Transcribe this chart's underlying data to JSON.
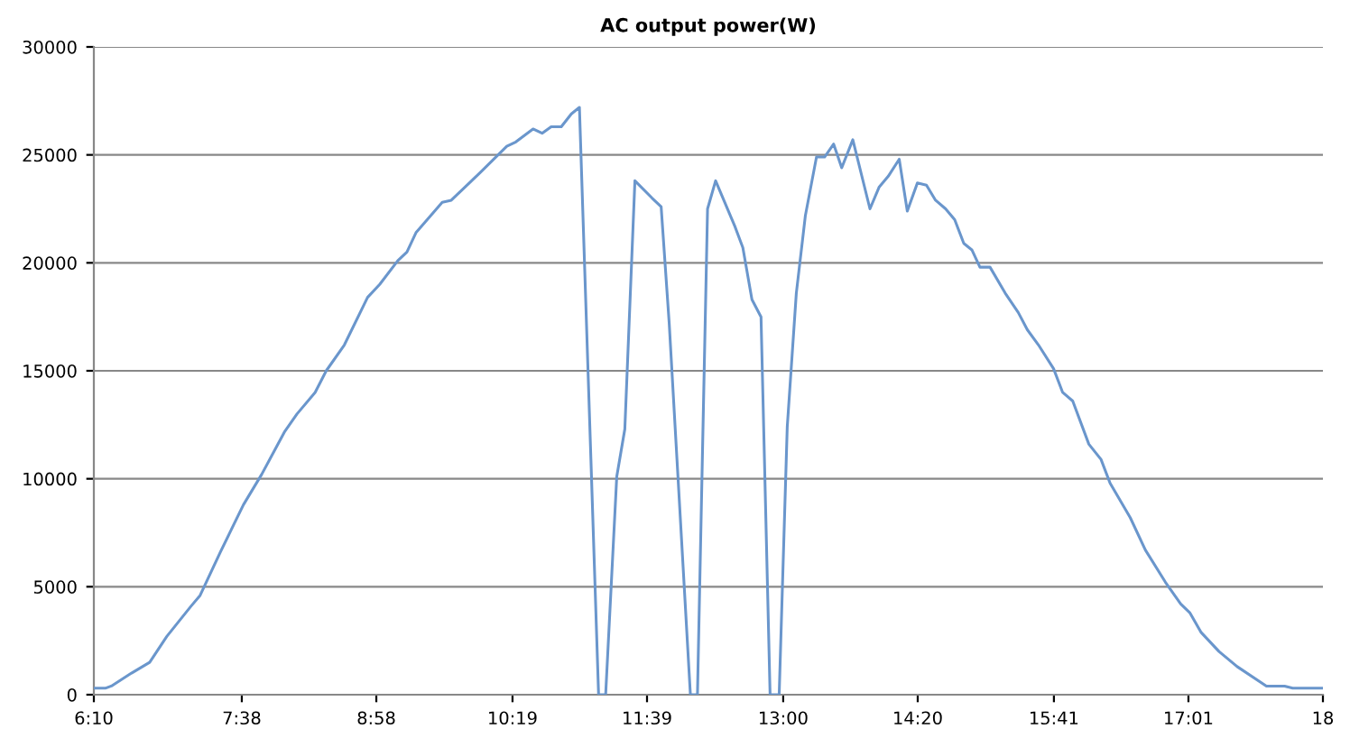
{
  "chart_data": {
    "type": "line",
    "title": "AC output power(W)",
    "x": [
      6.17,
      6.28,
      6.34,
      6.54,
      6.72,
      6.89,
      7.13,
      7.22,
      7.42,
      7.65,
      7.83,
      8.06,
      8.18,
      8.36,
      8.47,
      8.65,
      8.88,
      9.0,
      9.18,
      9.27,
      9.36,
      9.62,
      9.71,
      10.0,
      10.26,
      10.35,
      10.52,
      10.61,
      10.7,
      10.8,
      10.9,
      10.98,
      11.17,
      11.24,
      11.35,
      11.43,
      11.53,
      11.7,
      11.79,
      11.87,
      12.08,
      12.15,
      12.25,
      12.33,
      12.52,
      12.6,
      12.69,
      12.78,
      12.87,
      12.96,
      13.04,
      13.13,
      13.22,
      13.33,
      13.41,
      13.5,
      13.58,
      13.69,
      13.86,
      13.95,
      14.04,
      14.15,
      14.23,
      14.33,
      14.42,
      14.51,
      14.61,
      14.7,
      14.79,
      14.87,
      14.95,
      15.05,
      15.2,
      15.33,
      15.42,
      15.53,
      15.68,
      15.77,
      15.87,
      16.03,
      16.15,
      16.24,
      16.44,
      16.59,
      16.79,
      16.94,
      17.03,
      17.14,
      17.32,
      17.5,
      17.79,
      17.97,
      18.05,
      18.35
    ],
    "series": [
      {
        "color": "#6a96cc",
        "values": [
          300,
          300,
          400,
          1000,
          1500,
          2700,
          4100,
          4600,
          6600,
          8800,
          10200,
          12200,
          13000,
          14000,
          15000,
          16200,
          18400,
          19000,
          20100,
          20500,
          21400,
          22800,
          22900,
          24200,
          25400,
          25600,
          26200,
          26000,
          26300,
          26300,
          26900,
          27200,
          0,
          0,
          10100,
          12300,
          23800,
          23000,
          22600,
          17200,
          0,
          0,
          22500,
          23800,
          21700,
          20700,
          18300,
          17500,
          0,
          0,
          12400,
          18600,
          22200,
          24900,
          24900,
          25500,
          24400,
          25700,
          22500,
          23500,
          24000,
          24800,
          22400,
          23700,
          23600,
          22900,
          22500,
          22000,
          20900,
          20600,
          19800,
          19800,
          18600,
          17700,
          16900,
          16200,
          15100,
          14000,
          13600,
          11600,
          10900,
          9800,
          8200,
          6700,
          5200,
          4200,
          3800,
          2900,
          2000,
          1300,
          400,
          400,
          300,
          300
        ]
      }
    ],
    "xlim": [
      6.1667,
      18.35
    ],
    "ylim": [
      0,
      30000
    ],
    "xticks": [
      {
        "value": 6.1667,
        "label": "6:10"
      },
      {
        "value": 7.6333,
        "label": "7:38"
      },
      {
        "value": 8.9667,
        "label": "8:58"
      },
      {
        "value": 10.3167,
        "label": "10:19"
      },
      {
        "value": 11.65,
        "label": "11:39"
      },
      {
        "value": 13.0,
        "label": "13:00"
      },
      {
        "value": 14.3333,
        "label": "14:20"
      },
      {
        "value": 15.6833,
        "label": "15:41"
      },
      {
        "value": 17.0167,
        "label": "17:01"
      },
      {
        "value": 18.35,
        "label": "18"
      }
    ],
    "yticks": [
      0,
      5000,
      10000,
      15000,
      20000,
      25000,
      30000
    ],
    "grid": "y",
    "legend": false,
    "marker": "none",
    "line_style": "solid"
  }
}
